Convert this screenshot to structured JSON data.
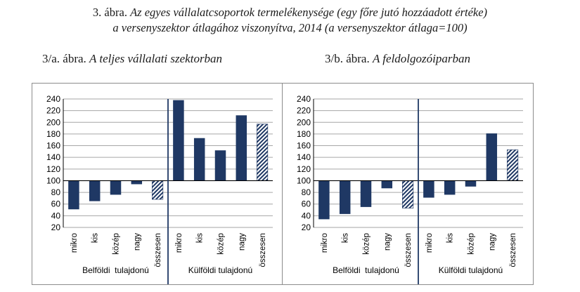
{
  "figure": {
    "number": "3. ábra.",
    "title_line1": "Az egyes vállalatcsoportok termelékenysége (egy főre jutó hozzáadott értéke)",
    "title_line2": "a versenyszektor átlagához viszonyítva, 2014 (a versenyszektor átlaga=100)"
  },
  "colors": {
    "bar": "#1f3864",
    "hatch": "#1f3864",
    "grid": "#a6a6a6",
    "divider": "#1f3864"
  },
  "chart_data": [
    {
      "type": "bar",
      "label_number": "3/a. ábra.",
      "title": "A teljes vállalati szektorban",
      "ylim": [
        20,
        240
      ],
      "yticks": [
        20,
        40,
        60,
        80,
        100,
        120,
        140,
        160,
        180,
        200,
        220,
        240
      ],
      "baseline": 100,
      "grid": true,
      "groups": [
        {
          "name": "Belföldi  tulajdonú",
          "categories": [
            "mikro",
            "kis",
            "közép",
            "nagy",
            "összesen"
          ],
          "values": [
            51,
            65,
            76,
            94,
            68
          ],
          "hatched": [
            false,
            false,
            false,
            false,
            true
          ]
        },
        {
          "name": "Külföldi tulajdonú",
          "categories": [
            "mikro",
            "kis",
            "közép",
            "nagy",
            "összesen"
          ],
          "values": [
            238,
            173,
            152,
            212,
            197
          ],
          "hatched": [
            false,
            false,
            false,
            false,
            true
          ]
        }
      ]
    },
    {
      "type": "bar",
      "label_number": "3/b. ábra.",
      "title": "A feldolgozóiparban",
      "ylim": [
        20,
        240
      ],
      "yticks": [
        20,
        40,
        60,
        80,
        100,
        120,
        140,
        160,
        180,
        200,
        220,
        240
      ],
      "baseline": 100,
      "grid": true,
      "groups": [
        {
          "name": "Belföldi  tulajdonú",
          "categories": [
            "mikro",
            "kis",
            "közép",
            "nagy",
            "összesen"
          ],
          "values": [
            34,
            43,
            55,
            87,
            53
          ],
          "hatched": [
            false,
            false,
            false,
            false,
            true
          ]
        },
        {
          "name": "Külföldi tulajdonú",
          "categories": [
            "mikro",
            "kis",
            "közép",
            "nagy",
            "összesen"
          ],
          "values": [
            71,
            76,
            90,
            181,
            153
          ],
          "hatched": [
            false,
            false,
            false,
            false,
            true
          ]
        }
      ]
    }
  ]
}
